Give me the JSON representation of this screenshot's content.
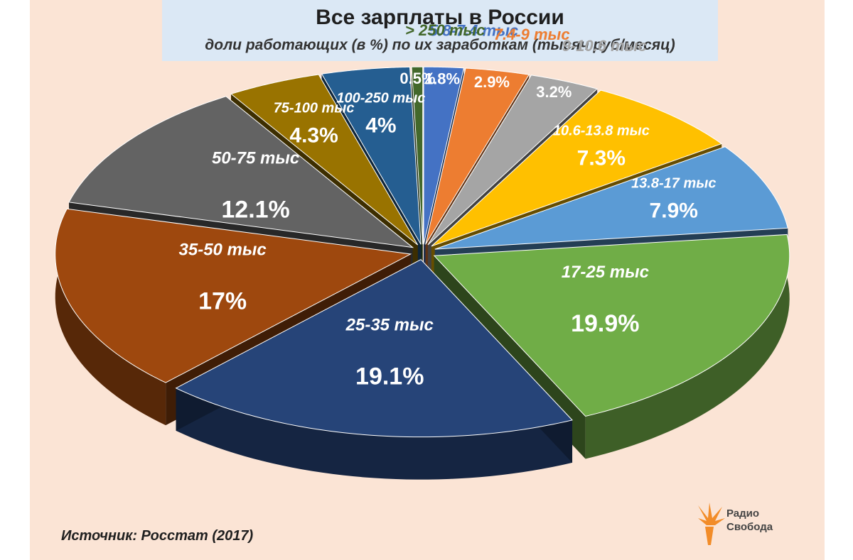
{
  "chart_data": {
    "type": "pie",
    "title": "Все зарплаты в России",
    "subtitle": "доли работающих (в %) по их заработкам (тысяч руб/месяц)",
    "slices": [
      {
        "label": "5.8-7.4 тыс",
        "value": 1.8,
        "value_label": "1.8%",
        "color": "#4472c4"
      },
      {
        "label": "7.4-9 тыс",
        "value": 2.9,
        "value_label": "2.9%",
        "color": "#ed7d31"
      },
      {
        "label": "9-10.6 тыс",
        "value": 3.2,
        "value_label": "3.2%",
        "color": "#a5a5a5"
      },
      {
        "label": "10.6-13.8 тыс",
        "value": 7.3,
        "value_label": "7.3%",
        "color": "#ffc000"
      },
      {
        "label": "13.8-17 тыс",
        "value": 7.9,
        "value_label": "7.9%",
        "color": "#5b9bd5"
      },
      {
        "label": "17-25 тыс",
        "value": 19.9,
        "value_label": "19.9%",
        "color": "#70ad47"
      },
      {
        "label": "25-35 тыс",
        "value": 19.1,
        "value_label": "19.1%",
        "color": "#264478"
      },
      {
        "label": "35-50 тыс",
        "value": 17,
        "value_label": "17%",
        "color": "#9e480e"
      },
      {
        "label": "50-75 тыс",
        "value": 12.1,
        "value_label": "12.1%",
        "color": "#636363"
      },
      {
        "label": "75-100 тыс",
        "value": 4.3,
        "value_label": "4.3%",
        "color": "#997300"
      },
      {
        "label": "100-250 тыс",
        "value": 4,
        "value_label": "4%",
        "color": "#255e91"
      },
      {
        "label": "> 250 тыс",
        "value": 0.5,
        "value_label": "0.5%",
        "color": "#43682b"
      }
    ]
  },
  "source": "Источник: Росстат (2017)",
  "logo": {
    "line1": "Радио",
    "line2": "Свобода"
  }
}
